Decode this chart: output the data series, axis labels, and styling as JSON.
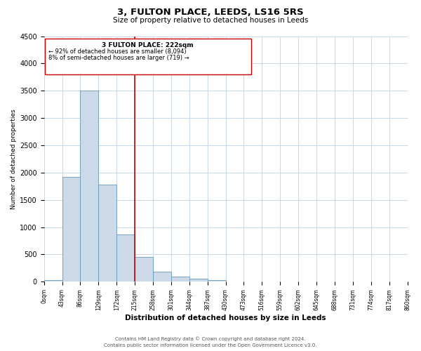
{
  "title": "3, FULTON PLACE, LEEDS, LS16 5RS",
  "subtitle": "Size of property relative to detached houses in Leeds",
  "xlabel": "Distribution of detached houses by size in Leeds",
  "ylabel": "Number of detached properties",
  "bins": [
    0,
    43,
    86,
    129,
    172,
    215,
    258,
    301,
    344,
    387,
    430,
    473,
    516,
    559,
    602,
    645,
    688,
    731,
    774,
    817,
    860
  ],
  "counts": [
    30,
    1920,
    3500,
    1780,
    860,
    460,
    185,
    95,
    55,
    25,
    10,
    5,
    0,
    0,
    0,
    0,
    0,
    0,
    0,
    0
  ],
  "vline_x": 215,
  "bar_facecolor": "#ccd9e8",
  "bar_edgecolor": "#6699bb",
  "vline_color": "#cc0000",
  "box_edgecolor": "#cc0000",
  "annotation_line1": "3 FULTON PLACE: 222sqm",
  "annotation_line2": "← 92% of detached houses are smaller (8,094)",
  "annotation_line3": "8% of semi-detached houses are larger (719) →",
  "ylim": [
    0,
    4500
  ],
  "tick_labels": [
    "0sqm",
    "43sqm",
    "86sqm",
    "129sqm",
    "172sqm",
    "215sqm",
    "258sqm",
    "301sqm",
    "344sqm",
    "387sqm",
    "430sqm",
    "473sqm",
    "516sqm",
    "559sqm",
    "602sqm",
    "645sqm",
    "688sqm",
    "731sqm",
    "774sqm",
    "817sqm",
    "860sqm"
  ],
  "footer_line1": "Contains HM Land Registry data © Crown copyright and database right 2024.",
  "footer_line2": "Contains public sector information licensed under the Open Government Licence v3.0.",
  "background_color": "#ffffff",
  "grid_color": "#c8d8e8"
}
